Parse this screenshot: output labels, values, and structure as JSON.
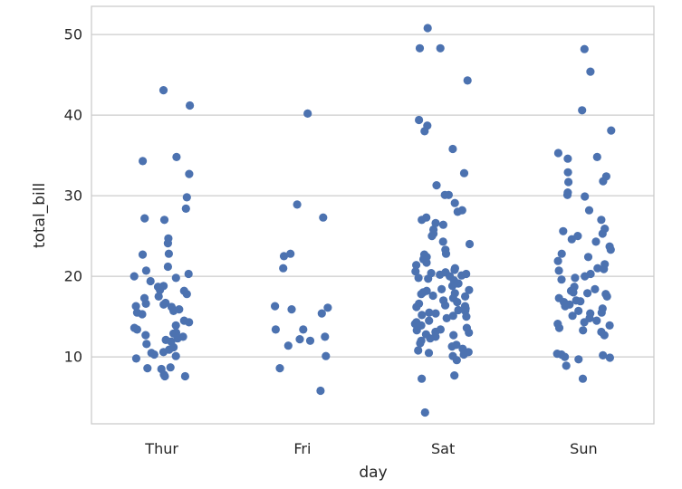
{
  "chart_data": {
    "type": "scatter",
    "subtype": "strip",
    "title": "",
    "xlabel": "day",
    "ylabel": "total_bill",
    "categories": [
      "Thur",
      "Fri",
      "Sat",
      "Sun"
    ],
    "ylim": [
      1.7,
      53.5
    ],
    "yticks": [
      10,
      20,
      30,
      40,
      50
    ],
    "grid": true,
    "legend": "none",
    "point_color": "#4c72b0",
    "grid_color": "#cccccc",
    "frame_color": "#cccccc",
    "series": [
      {
        "name": "Thur",
        "values": [
          43.1,
          41.2,
          34.8,
          34.3,
          32.7,
          29.8,
          28.4,
          27.2,
          27.0,
          24.7,
          24.1,
          22.8,
          22.7,
          21.2,
          20.7,
          20.3,
          20.0,
          19.8,
          19.4,
          18.8,
          18.7,
          18.3,
          18.2,
          17.8,
          17.5,
          17.3,
          16.7,
          16.6,
          16.5,
          16.3,
          16.2,
          15.9,
          15.7,
          15.5,
          15.3,
          14.5,
          14.3,
          13.9,
          13.6,
          13.4,
          13.0,
          12.9,
          12.7,
          12.5,
          12.3,
          12.1,
          11.9,
          11.6,
          11.2,
          10.9,
          10.6,
          10.5,
          10.3,
          10.1,
          9.8,
          8.7,
          8.6,
          8.5,
          7.8,
          7.6,
          7.6
        ]
      },
      {
        "name": "Fri",
        "values": [
          40.2,
          28.9,
          27.3,
          22.8,
          22.5,
          21.0,
          16.3,
          16.1,
          15.9,
          15.4,
          13.4,
          13.4,
          12.5,
          12.2,
          12.0,
          11.4,
          10.1,
          8.6,
          5.8
        ]
      },
      {
        "name": "Sat",
        "values": [
          50.8,
          48.3,
          48.3,
          44.3,
          39.4,
          38.7,
          38.0,
          35.8,
          32.8,
          31.3,
          30.1,
          30.1,
          29.1,
          28.2,
          28.0,
          27.3,
          27.0,
          26.6,
          26.4,
          25.8,
          25.3,
          25.0,
          24.3,
          24.0,
          23.3,
          22.8,
          22.7,
          22.4,
          22.1,
          21.7,
          21.4,
          21.0,
          20.8,
          20.6,
          20.5,
          20.4,
          20.3,
          20.2,
          20.1,
          20.0,
          19.8,
          19.7,
          19.5,
          19.1,
          18.8,
          18.4,
          18.3,
          18.2,
          18.0,
          17.9,
          17.8,
          17.6,
          17.5,
          17.3,
          17.0,
          16.8,
          16.6,
          16.4,
          16.3,
          16.2,
          16.0,
          15.8,
          15.7,
          15.5,
          15.4,
          15.2,
          15.1,
          15.0,
          14.8,
          14.5,
          14.3,
          14.1,
          13.9,
          13.6,
          13.4,
          13.3,
          13.1,
          13.0,
          12.8,
          12.7,
          12.5,
          12.3,
          12.0,
          11.7,
          11.5,
          11.3,
          11.0,
          10.8,
          10.6,
          10.5,
          10.3,
          10.1,
          9.6,
          7.7,
          7.3,
          3.1
        ]
      },
      {
        "name": "Sun",
        "values": [
          48.2,
          45.4,
          40.6,
          38.1,
          35.3,
          34.8,
          34.6,
          32.9,
          32.4,
          31.8,
          31.7,
          30.4,
          30.1,
          29.9,
          28.2,
          27.0,
          25.9,
          25.6,
          25.3,
          25.0,
          24.6,
          24.3,
          23.7,
          23.3,
          22.8,
          22.4,
          21.9,
          21.5,
          21.0,
          20.9,
          20.7,
          20.3,
          20.0,
          19.8,
          19.6,
          18.7,
          18.4,
          18.2,
          18.0,
          17.9,
          17.8,
          17.5,
          17.3,
          17.0,
          16.9,
          16.8,
          16.5,
          16.3,
          16.0,
          15.7,
          15.5,
          15.4,
          15.1,
          14.8,
          14.5,
          14.3,
          14.1,
          13.9,
          13.6,
          13.3,
          13.1,
          12.7,
          10.4,
          10.3,
          10.2,
          10.0,
          9.9,
          9.7,
          8.9,
          7.3
        ]
      }
    ]
  }
}
